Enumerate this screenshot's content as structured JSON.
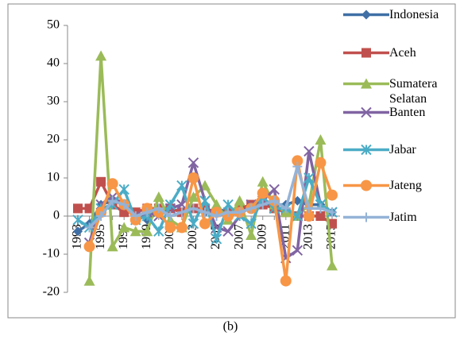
{
  "chart_data": {
    "type": "line",
    "caption": "(b)",
    "categories": [
      "1993",
      null,
      "1995",
      null,
      "1997",
      null,
      "1999",
      null,
      "2001",
      null,
      "2003",
      null,
      "2005",
      null,
      "2007",
      null,
      "2009",
      null,
      "2011",
      null,
      "2013",
      null,
      "2015"
    ],
    "ylim": [
      -20,
      50
    ],
    "yticks": [
      -20,
      -10,
      0,
      10,
      20,
      30,
      40,
      50
    ],
    "grid": false,
    "legend": "right",
    "series": [
      {
        "name": "Indonesia",
        "color": "#3f6fa5",
        "marker": "diamond",
        "values": [
          -4,
          -2,
          3,
          4,
          3,
          1,
          -1,
          1,
          2,
          1,
          2,
          1,
          2,
          1,
          2,
          2,
          3,
          3,
          3,
          4,
          3,
          3,
          1
        ]
      },
      {
        "name": "Aceh",
        "color": "#c0504d",
        "marker": "square",
        "values": [
          2,
          2,
          9,
          3,
          1,
          1,
          2,
          2,
          2,
          1,
          2,
          2,
          1,
          1,
          2,
          3,
          3,
          2,
          1,
          0,
          0,
          0,
          -2
        ]
      },
      {
        "name": "Sumatera Selatan",
        "color": "#9bbb59",
        "marker": "triangle",
        "values": [
          null,
          -17,
          42,
          -8,
          -3,
          -4,
          -4,
          5,
          -1,
          -3,
          5,
          8,
          3,
          -1,
          4,
          -5,
          9,
          3,
          1,
          0,
          3,
          20,
          -13
        ]
      },
      {
        "name": "Banten",
        "color": "#8064a2",
        "marker": "x",
        "values": [
          null,
          -7,
          3,
          5,
          3,
          0,
          1,
          0,
          2,
          3,
          14,
          4,
          -3,
          -4,
          0,
          3,
          4,
          7,
          -11,
          -9,
          17,
          3,
          1
        ]
      },
      {
        "name": "Jabar",
        "color": "#4bacc6",
        "marker": "asterisk",
        "values": [
          -1,
          -3,
          2,
          3,
          7,
          -1,
          0,
          -4,
          3,
          8,
          -2,
          4,
          -6,
          3,
          0,
          -2,
          5,
          2,
          2,
          0,
          10,
          3,
          1
        ]
      },
      {
        "name": "Jateng",
        "color": "#f79646",
        "marker": "circle",
        "values": [
          null,
          -8,
          1,
          8.5,
          3,
          -1,
          2,
          1,
          -3,
          -3,
          10,
          -2,
          1,
          0,
          1,
          2,
          6,
          4,
          -17,
          14.5,
          0,
          14,
          5.5
        ]
      },
      {
        "name": "Jatim",
        "color": "#95b3d7",
        "marker": "plus",
        "values": [
          null,
          -3,
          0,
          4,
          3,
          0,
          1,
          2,
          0,
          1,
          2,
          1,
          0,
          1,
          1,
          2,
          3,
          4,
          2,
          13,
          2,
          2,
          1
        ]
      }
    ]
  }
}
